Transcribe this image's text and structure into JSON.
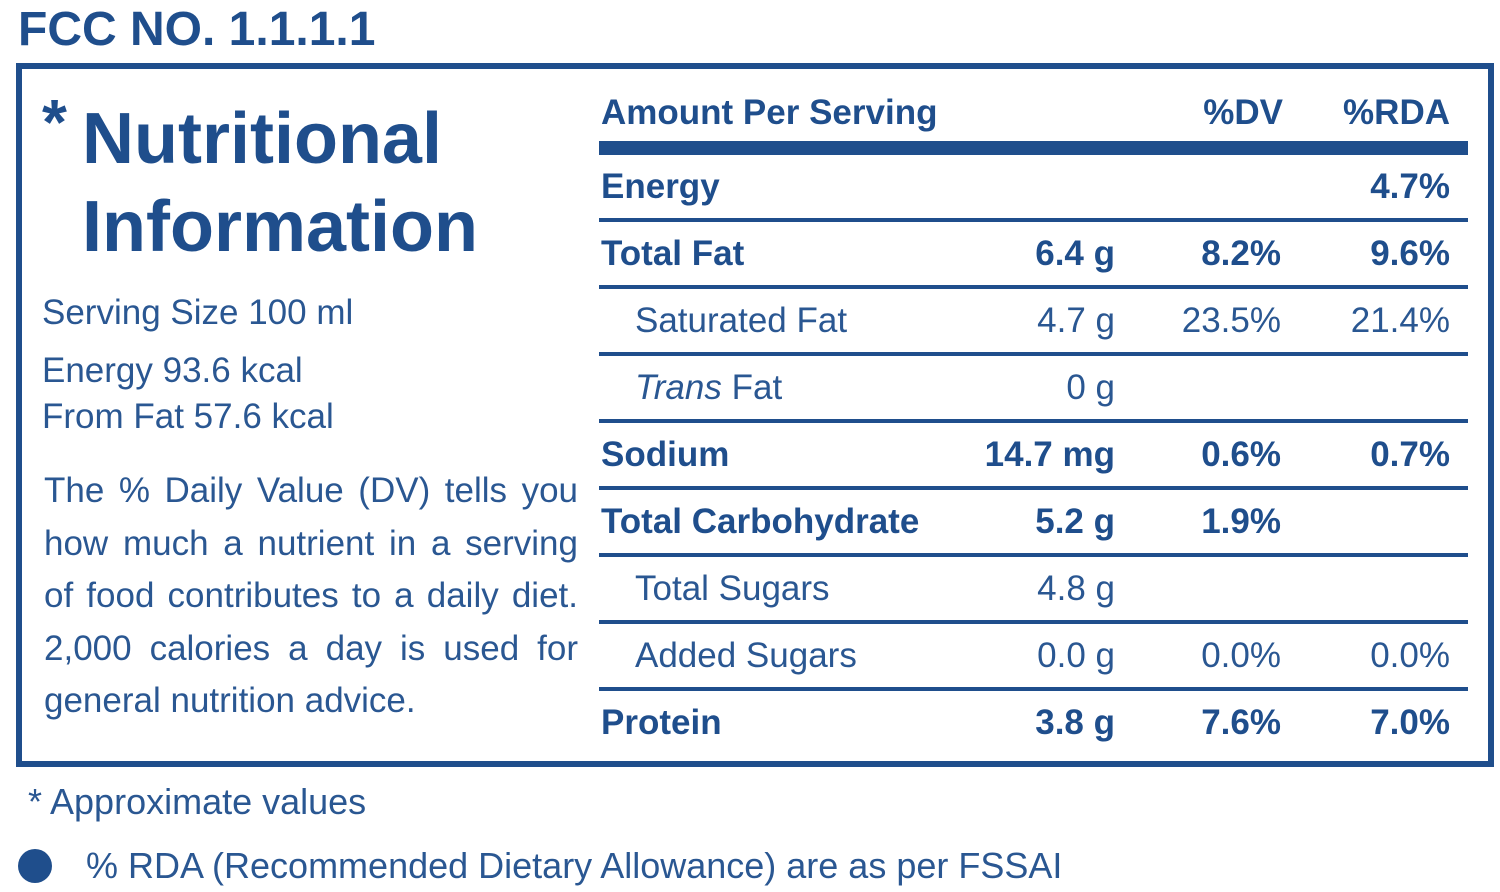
{
  "fcc_number": "FCC NO. 1.1.1.1",
  "panel": {
    "asterisk": "*",
    "title_line1": "Nutritional",
    "title_line2": "Information",
    "serving_size": "Serving Size 100 ml",
    "energy": "Energy 93.6 kcal",
    "from_fat": "From Fat 57.6 kcal",
    "dv_note": "The % Daily Value (DV) tells you how much a nutrient in a serving of food contributes to a daily diet. 2,000 calories a day is used for general nutrition advice."
  },
  "table": {
    "header": {
      "amount_per_serving": "Amount Per Serving",
      "dv": "%DV",
      "rda": "%RDA"
    },
    "rows": [
      {
        "name": "Energy",
        "amount": "",
        "dv": "",
        "rda": "4.7%"
      },
      {
        "name": "Total Fat",
        "amount": "6.4 g",
        "dv": "8.2%",
        "rda": "9.6%"
      },
      {
        "name": "Saturated Fat",
        "amount": "4.7 g",
        "dv": "23.5%",
        "rda": "21.4%"
      },
      {
        "name_italic": "Trans",
        "name_rest": " Fat",
        "amount": "0 g",
        "dv": "",
        "rda": ""
      },
      {
        "name": "Sodium",
        "amount": "14.7 mg",
        "dv": "0.6%",
        "rda": "0.7%"
      },
      {
        "name": "Total Carbohydrate",
        "amount": "5.2 g",
        "dv": "1.9%",
        "rda": ""
      },
      {
        "name": "Total Sugars",
        "amount": "4.8 g",
        "dv": "",
        "rda": ""
      },
      {
        "name": "Added Sugars",
        "amount": "0.0 g",
        "dv": "0.0%",
        "rda": "0.0%"
      },
      {
        "name": "Protein",
        "amount": "3.8 g",
        "dv": "7.6%",
        "rda": "7.0%"
      }
    ]
  },
  "footnotes": {
    "approximate": "* Approximate values",
    "rda_note": "% RDA (Recommended Dietary Allowance) are as per FSSAI"
  },
  "colors": {
    "primary": "#1f4e8c",
    "text": "#2a5792",
    "background": "#ffffff"
  }
}
